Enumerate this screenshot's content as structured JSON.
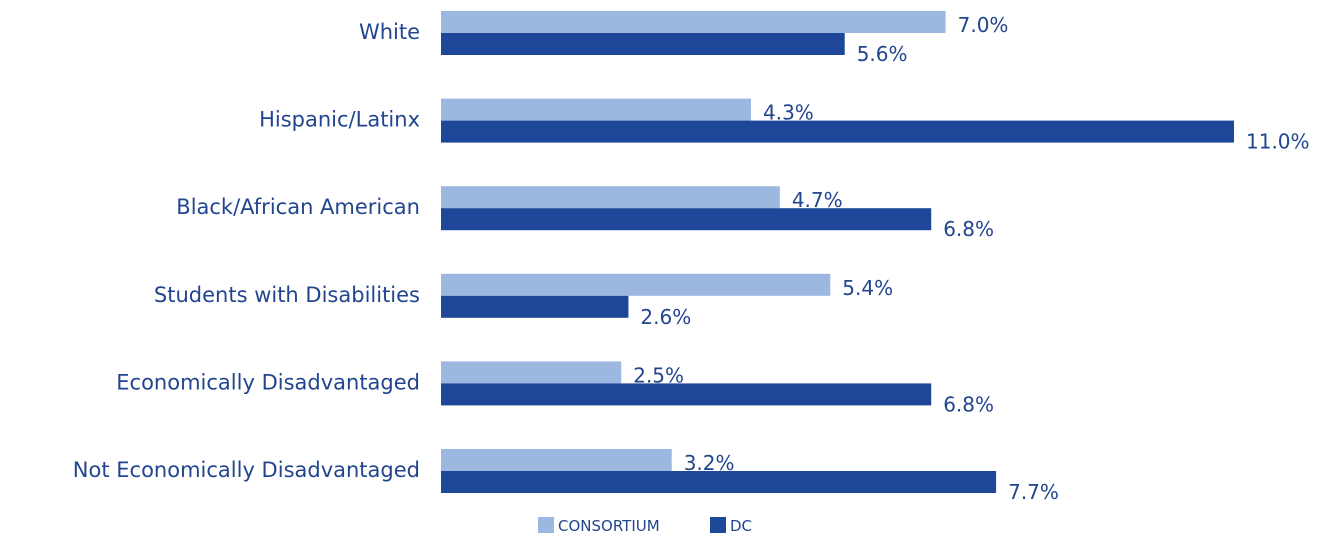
{
  "colors": {
    "consortium": "#9cb8e0",
    "dc": "#1f4799",
    "text": "#22458f"
  },
  "chart_data": {
    "type": "bar",
    "orientation": "horizontal",
    "categories": [
      "White",
      "Hispanic/Latinx",
      "Black/African American",
      "Students with Disabilities",
      "Economically Disadvantaged",
      "Not Economically Disadvantaged"
    ],
    "series": [
      {
        "name": "CONSORTIUM",
        "values": [
          7.0,
          4.3,
          4.7,
          5.4,
          2.5,
          3.2
        ],
        "labels": [
          "7.0%",
          "4.3%",
          "4.7%",
          "5.4%",
          "2.5%",
          "3.2%"
        ]
      },
      {
        "name": "DC",
        "values": [
          5.6,
          11.0,
          6.8,
          2.6,
          6.8,
          7.7
        ],
        "labels": [
          "5.6%",
          "11.0%",
          "6.8%",
          "2.6%",
          "6.8%",
          "7.7%"
        ]
      }
    ],
    "xlim": [
      0,
      11.0
    ],
    "grid": false,
    "legend": "bottom-center"
  }
}
